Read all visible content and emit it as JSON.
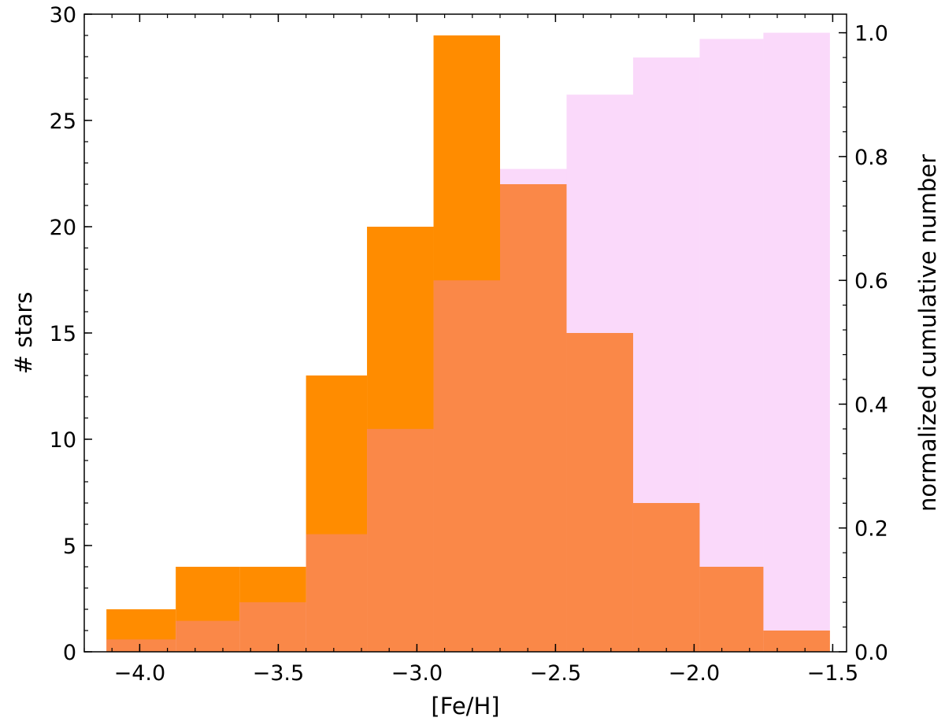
{
  "chart_data": {
    "type": "bar",
    "xlabel": "[Fe/H]",
    "ylabel": "# stars",
    "y2label": "normalized cumulative number",
    "xlim": [
      -4.2,
      -1.45
    ],
    "ylim": [
      0,
      30
    ],
    "y2lim": [
      0,
      1.03
    ],
    "xticks": [
      -4.0,
      -3.5,
      -3.0,
      -2.5,
      -2.0,
      -1.5
    ],
    "xtick_labels": [
      "−4.0",
      "−3.5",
      "−3.0",
      "−2.5",
      "−2.0",
      "−1.5"
    ],
    "yticks": [
      0,
      5,
      10,
      15,
      20,
      25,
      30
    ],
    "ytick_labels": [
      "0",
      "5",
      "10",
      "15",
      "20",
      "25",
      "30"
    ],
    "y2ticks": [
      0.0,
      0.2,
      0.4,
      0.6,
      0.8,
      1.0
    ],
    "y2tick_labels": [
      "0.0",
      "0.2",
      "0.4",
      "0.6",
      "0.8",
      "1.0"
    ],
    "bin_edges": [
      -4.12,
      -3.87,
      -3.64,
      -3.4,
      -3.18,
      -2.94,
      -2.7,
      -2.46,
      -2.22,
      -1.98,
      -1.75,
      -1.51
    ],
    "grid": false,
    "series": [
      {
        "values": [
          2,
          4,
          4,
          13,
          20,
          29,
          22,
          15,
          7,
          4,
          1
        ],
        "axis": "left",
        "color": "#ff8c00"
      },
      {
        "values": [
          0.02,
          0.05,
          0.08,
          0.19,
          0.36,
          0.6,
          0.78,
          0.9,
          0.96,
          0.99,
          1.0
        ],
        "axis": "right",
        "color": "#ee82ee",
        "opacity": 0.3
      }
    ]
  }
}
